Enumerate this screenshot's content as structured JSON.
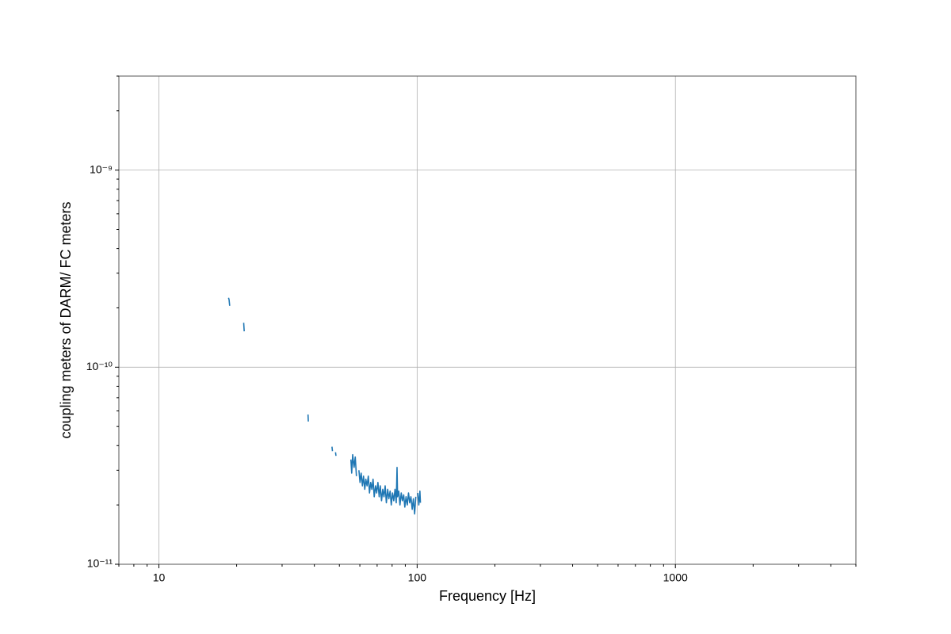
{
  "chart_data": {
    "type": "line",
    "xlabel": "Frequency [Hz]",
    "ylabel": "coupling meters of DARM/ FC meters",
    "xscale": "log",
    "yscale": "log",
    "grid": true,
    "color": "#1f77b4",
    "xlim": [
      7,
      5000
    ],
    "ylim": [
      1e-11,
      3e-09
    ],
    "xticks": [
      10,
      100,
      1000
    ],
    "xminorticks": [
      7,
      8,
      9,
      20,
      30,
      40,
      50,
      60,
      70,
      80,
      90,
      200,
      300,
      400,
      500,
      600,
      700,
      800,
      900,
      2000,
      3000,
      4000,
      5000
    ],
    "yticks": [
      {
        "value": 1e-11,
        "label": "10⁻¹¹"
      },
      {
        "value": 1e-10,
        "label": "10⁻¹⁰"
      },
      {
        "value": 1e-09,
        "label": "10⁻⁹"
      }
    ],
    "yminorticks": [
      2e-11,
      3e-11,
      4e-11,
      5e-11,
      6e-11,
      7e-11,
      8e-11,
      9e-11,
      2e-10,
      3e-10,
      4e-10,
      5e-10,
      6e-10,
      7e-10,
      8e-10,
      9e-10,
      2e-09,
      3e-09
    ],
    "x": [
      18.6,
      18.7,
      18.8,
      null,
      21.3,
      21.4,
      null,
      37.8,
      37.9,
      null,
      46.8,
      47.0,
      null,
      48.3,
      48.5,
      null,
      55.4,
      55.8,
      56.3,
      57.0,
      57.6,
      58.2,
      null,
      59.5,
      60.1,
      60.7,
      61.4,
      62.0,
      62.7,
      63.3,
      64.0,
      64.7,
      65.4,
      66.1,
      66.8,
      67.5,
      68.2,
      69.0,
      69.7,
      70.5,
      71.3,
      72.0,
      72.8,
      73.6,
      74.4,
      75.2,
      76.0,
      76.9,
      77.7,
      78.6,
      79.4,
      80.3,
      81.2,
      82.1,
      83.0,
      83.6,
      84.0,
      84.9,
      85.8,
      86.8,
      87.7,
      88.7,
      89.6,
      90.6,
      91.6,
      92.6,
      93.6,
      94.6,
      95.7,
      96.7,
      97.8,
      98.8,
      null,
      100.5,
      101.5,
      102.5,
      103.0
    ],
    "values": [
      2.25e-10,
      2.2e-10,
      2.05e-10,
      null,
      1.68e-10,
      1.52e-10,
      null,
      5.75e-11,
      5.3e-11,
      null,
      3.95e-11,
      3.75e-11,
      null,
      3.7e-11,
      3.55e-11,
      null,
      3.4e-11,
      2.9e-11,
      3.6e-11,
      3.1e-11,
      3.5e-11,
      2.8e-11,
      null,
      3e-11,
      2.6e-11,
      2.9e-11,
      2.5e-11,
      2.8e-11,
      2.4e-11,
      2.7e-11,
      2.5e-11,
      2.8e-11,
      2.3e-11,
      2.6e-11,
      2.4e-11,
      2.7e-11,
      2.2e-11,
      2.5e-11,
      2.3e-11,
      2.6e-11,
      2.2e-11,
      2.5e-11,
      2.1e-11,
      2.4e-11,
      2.2e-11,
      2.5e-11,
      2.05e-11,
      2.4e-11,
      2.15e-11,
      2.35e-11,
      2e-11,
      2.3e-11,
      2.1e-11,
      2.4e-11,
      2.05e-11,
      3.1e-11,
      2.2e-11,
      2.35e-11,
      2e-11,
      2.3e-11,
      2.1e-11,
      2.25e-11,
      1.95e-11,
      2.2e-11,
      2e-11,
      2.3e-11,
      2.05e-11,
      2.2e-11,
      1.9e-11,
      2.15e-11,
      1.8e-11,
      2.2e-11,
      null,
      2.3e-11,
      2e-11,
      2.35e-11,
      2.05e-11
    ]
  }
}
